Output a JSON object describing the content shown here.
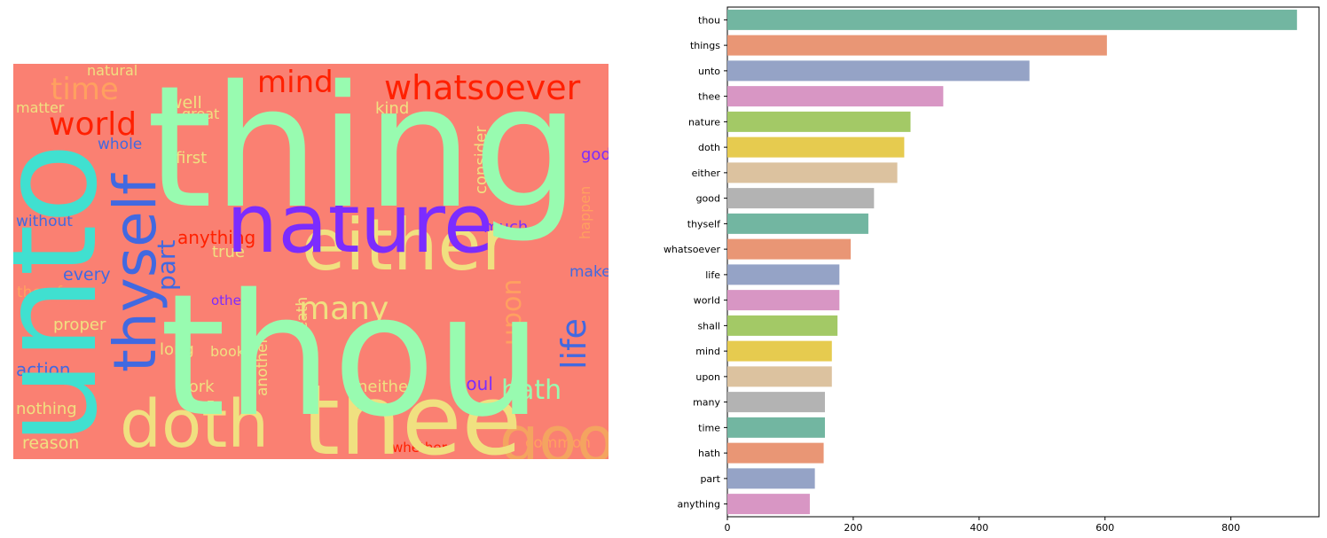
{
  "chart_data": [
    {
      "type": "other",
      "kind": "wordcloud",
      "background": "#fa8072",
      "words": [
        {
          "text": "thing",
          "color": "#98fbb0",
          "size": 1.0
        },
        {
          "text": "thou",
          "color": "#98fbb0",
          "size": 1.0
        },
        {
          "text": "unto",
          "color": "#40e0d0",
          "size": 0.82
        },
        {
          "text": "nature",
          "color": "#7b2cff",
          "size": 0.62
        },
        {
          "text": "thee",
          "color": "#f0e080",
          "size": 0.7
        },
        {
          "text": "either",
          "color": "#f0e080",
          "size": 0.5
        },
        {
          "text": "doth",
          "color": "#f0e080",
          "size": 0.48
        },
        {
          "text": "thyself",
          "color": "#4169e1",
          "size": 0.45
        },
        {
          "text": "good",
          "color": "#f4a460",
          "size": 0.44
        },
        {
          "text": "whatsoever",
          "color": "#ff2000",
          "size": 0.24
        },
        {
          "text": "world",
          "color": "#ff2000",
          "size": 0.23
        },
        {
          "text": "mind",
          "color": "#ff2000",
          "size": 0.22
        },
        {
          "text": "time",
          "color": "#ffa060",
          "size": 0.22
        },
        {
          "text": "life",
          "color": "#4169e1",
          "size": 0.25
        },
        {
          "text": "hath",
          "color": "#98fbb0",
          "size": 0.2
        },
        {
          "text": "many",
          "color": "#f0e080",
          "size": 0.21
        },
        {
          "text": "upon",
          "color": "#ffa060",
          "size": 0.2
        },
        {
          "text": "part",
          "color": "#4169e1",
          "size": 0.19
        },
        {
          "text": "anything",
          "color": "#ff2000",
          "size": 0.13
        },
        {
          "text": "gods",
          "color": "#7b2cff",
          "size": 0.12
        },
        {
          "text": "soul",
          "color": "#7b2cff",
          "size": 0.13
        },
        {
          "text": "action",
          "color": "#4169e1",
          "size": 0.12
        },
        {
          "text": "reason",
          "color": "#f0e080",
          "size": 0.12
        },
        {
          "text": "nothing",
          "color": "#f0e080",
          "size": 0.12
        },
        {
          "text": "neither",
          "color": "#f0e080",
          "size": 0.11
        },
        {
          "text": "common",
          "color": "#ffa060",
          "size": 0.11
        },
        {
          "text": "work",
          "color": "#f0e080",
          "size": 0.11
        },
        {
          "text": "proper",
          "color": "#f0e080",
          "size": 0.11
        },
        {
          "text": "every",
          "color": "#4169e1",
          "size": 0.12
        },
        {
          "text": "therefore",
          "color": "#ffa060",
          "size": 0.11
        },
        {
          "text": "without",
          "color": "#4169e1",
          "size": 0.11
        },
        {
          "text": "much",
          "color": "#7b2cff",
          "size": 0.11
        },
        {
          "text": "consider",
          "color": "#f0e080",
          "size": 0.1
        },
        {
          "text": "whole",
          "color": "#4169e1",
          "size": 0.1
        },
        {
          "text": "matter",
          "color": "#f0e080",
          "size": 0.1
        },
        {
          "text": "well",
          "color": "#f0e080",
          "size": 0.1
        },
        {
          "text": "first",
          "color": "#f0e080",
          "size": 0.1
        },
        {
          "text": "true",
          "color": "#f0e080",
          "size": 0.1
        },
        {
          "text": "kind",
          "color": "#f0e080",
          "size": 0.1
        },
        {
          "text": "make",
          "color": "#4169e1",
          "size": 0.1
        },
        {
          "text": "long",
          "color": "#f0e080",
          "size": 0.1
        },
        {
          "text": "others",
          "color": "#7b2cff",
          "size": 0.09
        },
        {
          "text": "death",
          "color": "#f0e080",
          "size": 0.09
        },
        {
          "text": "another",
          "color": "#f0e080",
          "size": 0.09
        },
        {
          "text": "whether",
          "color": "#ff2000",
          "size": 0.09
        },
        {
          "text": "happen",
          "color": "#ffa060",
          "size": 0.09
        },
        {
          "text": "book",
          "color": "#f0e080",
          "size": 0.09
        },
        {
          "text": "natural",
          "color": "#f0e080",
          "size": 0.09
        },
        {
          "text": "great",
          "color": "#f0e080",
          "size": 0.09
        }
      ]
    },
    {
      "type": "bar",
      "orientation": "horizontal",
      "categories": [
        "thou",
        "things",
        "unto",
        "thee",
        "nature",
        "doth",
        "either",
        "good",
        "thyself",
        "whatsoever",
        "life",
        "world",
        "shall",
        "mind",
        "upon",
        "many",
        "time",
        "hath",
        "part",
        "anything"
      ],
      "values": [
        905,
        603,
        480,
        343,
        291,
        281,
        270,
        233,
        224,
        196,
        178,
        178,
        175,
        166,
        166,
        155,
        155,
        153,
        139,
        131
      ],
      "colors": [
        "#72b6a1",
        "#e99675",
        "#95a3c6",
        "#d896c4",
        "#a3c966",
        "#e6cb4f",
        "#dcc29f",
        "#b3b3b3"
      ],
      "xlim": [
        0,
        940
      ],
      "xticks": [
        0,
        200,
        400,
        600,
        800
      ],
      "title": "",
      "xlabel": "",
      "ylabel": ""
    }
  ]
}
